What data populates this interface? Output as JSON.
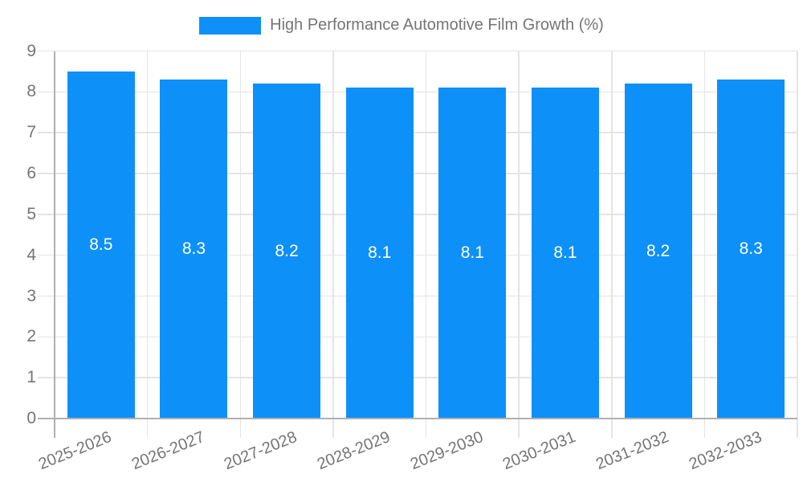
{
  "legend": {
    "label": "High Performance Automotive Film Growth (%)"
  },
  "chart_data": {
    "type": "bar",
    "title": "High Performance Automotive Film Growth (%)",
    "categories": [
      "2025-2026",
      "2026-2027",
      "2027-2028",
      "2028-2029",
      "2029-2030",
      "2030-2031",
      "2031-2032",
      "2032-2033"
    ],
    "series": [
      {
        "name": "High Performance Automotive Film Growth (%)",
        "values": [
          8.5,
          8.3,
          8.2,
          8.1,
          8.1,
          8.1,
          8.2,
          8.3
        ]
      }
    ],
    "value_labels": [
      "8.5",
      "8.3",
      "8.2",
      "8.1",
      "8.1",
      "8.1",
      "8.2",
      "8.3"
    ],
    "xlabel": "",
    "ylabel": "",
    "ylim": [
      0,
      9
    ],
    "yticks": [
      0,
      1,
      2,
      3,
      4,
      5,
      6,
      7,
      8,
      9
    ],
    "grid": true,
    "legend_position": "top",
    "colors": {
      "bar": "#0E90F9",
      "label_text": "#757575",
      "axis_line": "#B0B0B0",
      "gridline": "#E4E4E4",
      "value_label": "#FFFFFF"
    }
  }
}
